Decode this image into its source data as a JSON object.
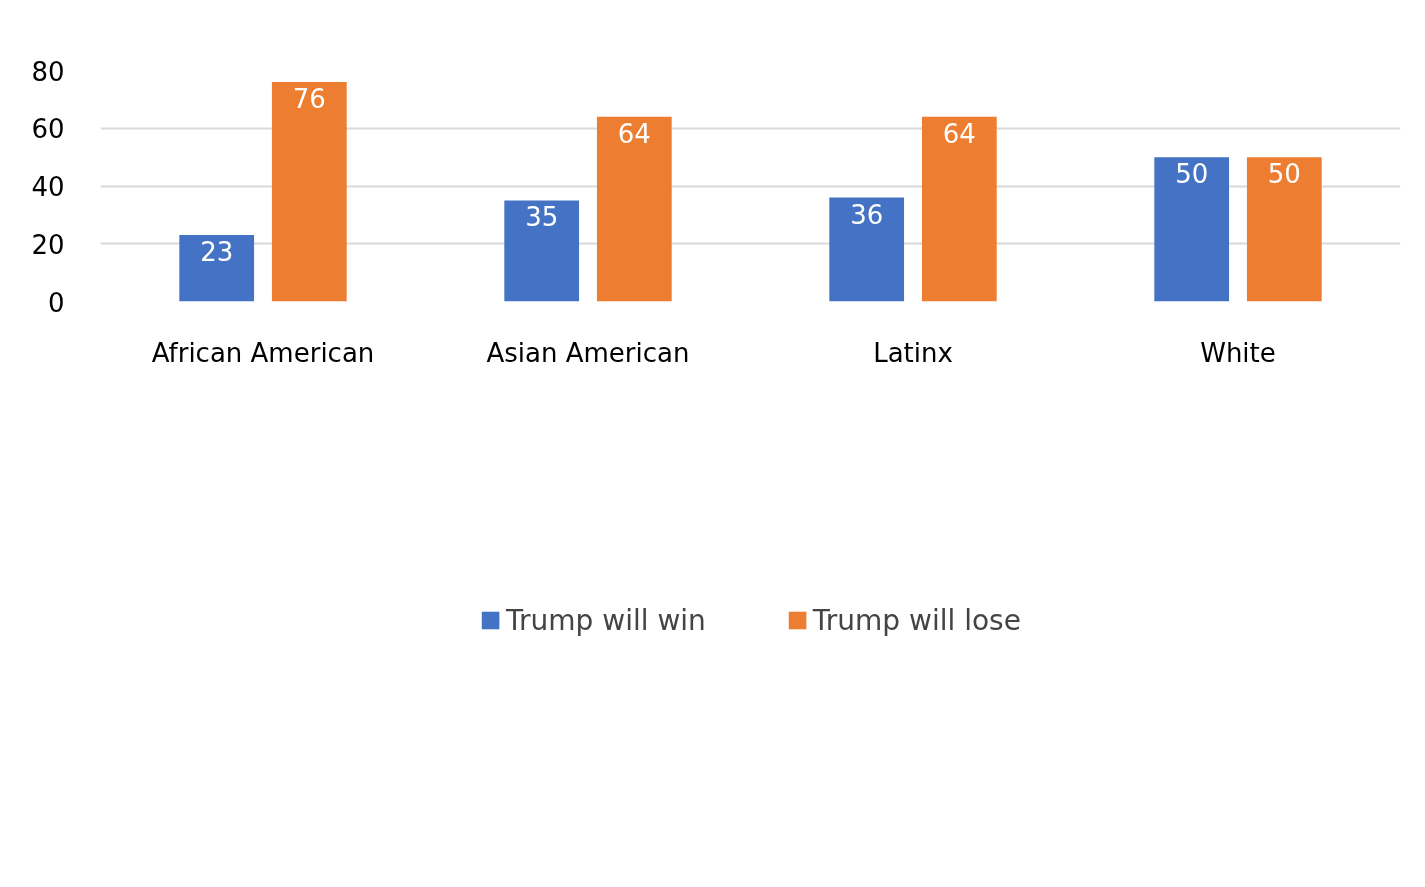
{
  "chart_data": {
    "type": "bar",
    "categories": [
      "African American",
      "Asian American",
      "Latinx",
      "White"
    ],
    "series": [
      {
        "name": "Trump will win",
        "color": "#4472c4",
        "values": [
          23,
          35,
          36,
          50
        ]
      },
      {
        "name": "Trump will lose",
        "color": "#ed7d31",
        "values": [
          76,
          64,
          64,
          50
        ]
      }
    ],
    "ylim": [
      0,
      80
    ],
    "yticks": [
      0,
      20,
      40,
      60,
      80
    ],
    "grid": "y",
    "legend": "bottom",
    "data_labels": true
  }
}
